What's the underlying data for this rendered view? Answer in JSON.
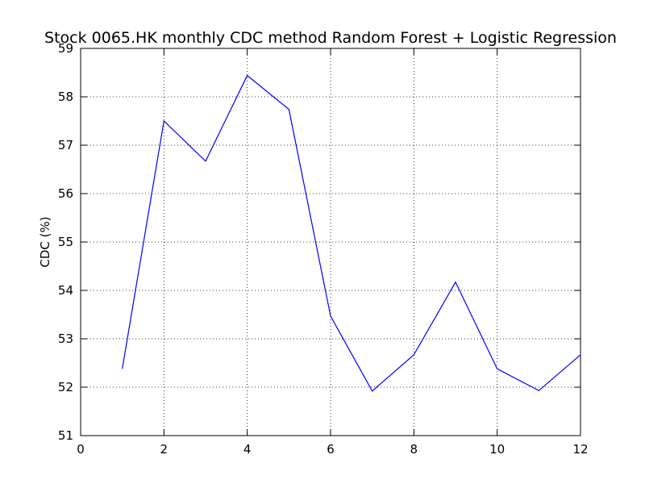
{
  "chart_data": {
    "type": "line",
    "title": "Stock 0065.HK monthly CDC method Random Forest + Logistic Regression",
    "xlabel": "",
    "ylabel": "CDC (%)",
    "xlim": [
      0,
      12
    ],
    "ylim": [
      51,
      59
    ],
    "xticks": [
      0,
      2,
      4,
      6,
      8,
      10,
      12
    ],
    "yticks": [
      51,
      52,
      53,
      54,
      55,
      56,
      57,
      58,
      59
    ],
    "grid": true,
    "series": [
      {
        "color": "#0000ff",
        "x": [
          1,
          2,
          3,
          4,
          5,
          6,
          7,
          8,
          9,
          10,
          11,
          12
        ],
        "values": [
          52.38,
          57.5,
          56.67,
          58.44,
          57.74,
          53.47,
          51.92,
          52.67,
          54.17,
          52.38,
          51.93,
          52.67
        ]
      }
    ]
  }
}
